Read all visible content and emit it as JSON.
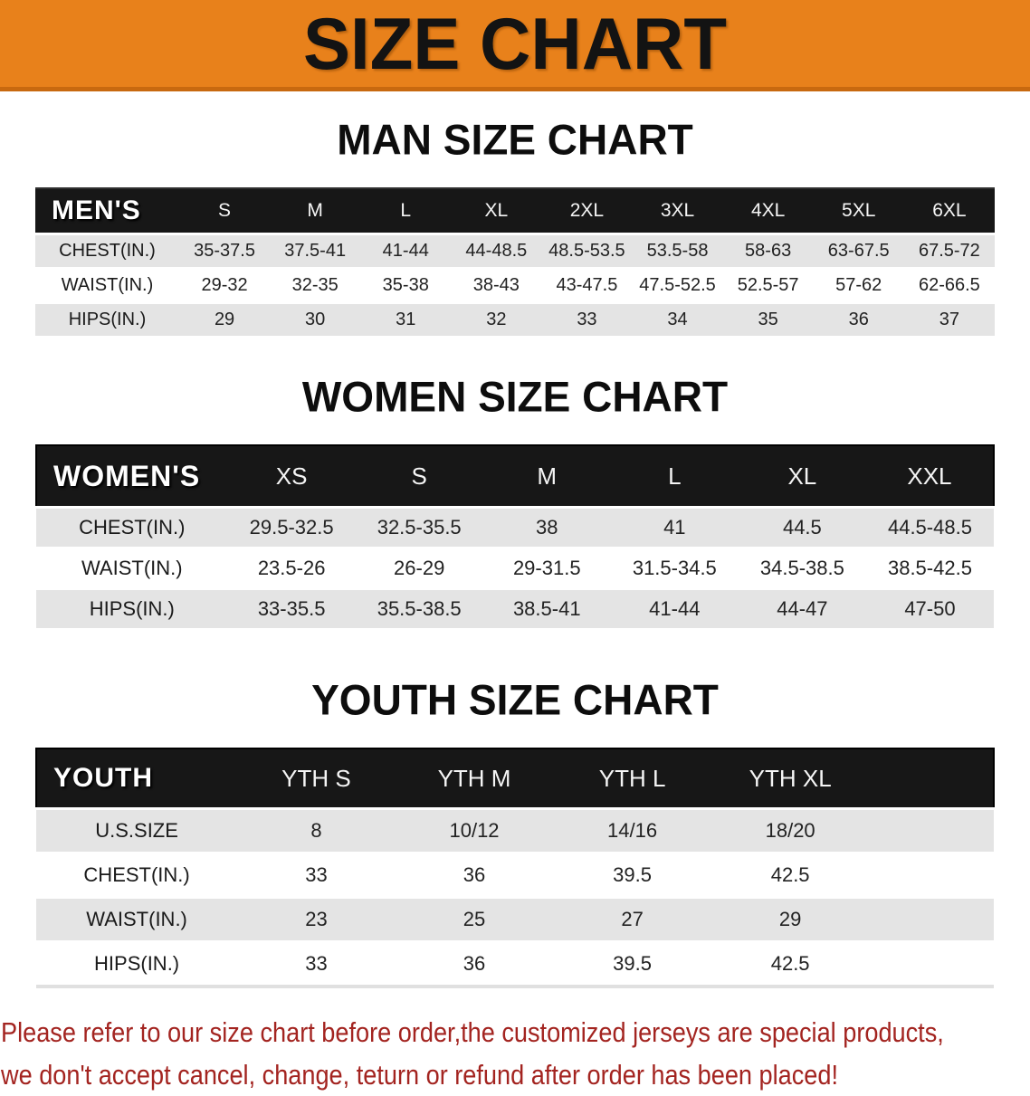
{
  "banner": {
    "title": "SIZE CHART",
    "bg_color": "#E8811B",
    "edge_color": "#C8690F"
  },
  "sections": [
    {
      "heading": "MAN SIZE CHART",
      "group_label": "MEN'S",
      "sizes": [
        "S",
        "M",
        "L",
        "XL",
        "2XL",
        "3XL",
        "4XL",
        "5XL",
        "6XL"
      ],
      "rows": [
        {
          "label": "CHEST(IN.)",
          "values": [
            "35-37.5",
            "37.5-41",
            "41-44",
            "44-48.5",
            "48.5-53.5",
            "53.5-58",
            "58-63",
            "63-67.5",
            "67.5-72"
          ]
        },
        {
          "label": "WAIST(IN.)",
          "values": [
            "29-32",
            "32-35",
            "35-38",
            "38-43",
            "43-47.5",
            "47.5-52.5",
            "52.5-57",
            "57-62",
            "62-66.5"
          ]
        },
        {
          "label": "HIPS(IN.)",
          "values": [
            "29",
            "30",
            "31",
            "32",
            "33",
            "34",
            "35",
            "36",
            "37"
          ]
        }
      ]
    },
    {
      "heading": "WOMEN SIZE CHART",
      "group_label": "WOMEN'S",
      "sizes": [
        "XS",
        "S",
        "M",
        "L",
        "XL",
        "XXL"
      ],
      "rows": [
        {
          "label": "CHEST(IN.)",
          "values": [
            "29.5-32.5",
            "32.5-35.5",
            "38",
            "41",
            "44.5",
            "44.5-48.5"
          ]
        },
        {
          "label": "WAIST(IN.)",
          "values": [
            "23.5-26",
            "26-29",
            "29-31.5",
            "31.5-34.5",
            "34.5-38.5",
            "38.5-42.5"
          ]
        },
        {
          "label": "HIPS(IN.)",
          "values": [
            "33-35.5",
            "35.5-38.5",
            "38.5-41",
            "41-44",
            "44-47",
            "47-50"
          ]
        }
      ]
    },
    {
      "heading": "YOUTH SIZE CHART",
      "group_label": "YOUTH",
      "sizes": [
        "YTH S",
        "YTH M",
        "YTH L",
        "YTH XL"
      ],
      "rows": [
        {
          "label": "U.S.SIZE",
          "values": [
            "8",
            "10/12",
            "14/16",
            "18/20"
          ]
        },
        {
          "label": "CHEST(IN.)",
          "values": [
            "33",
            "36",
            "39.5",
            "42.5"
          ]
        },
        {
          "label": "WAIST(IN.)",
          "values": [
            "23",
            "25",
            "27",
            "29"
          ]
        },
        {
          "label": "HIPS(IN.)",
          "values": [
            "33",
            "36",
            "39.5",
            "42.5"
          ]
        }
      ]
    }
  ],
  "disclaimer": {
    "line1": "Please refer to our size chart before order,the customized jerseys are special products,",
    "line2": "we don't accept cancel, change, teturn or refund after order has been placed!",
    "color": "#A32420"
  },
  "header_colors": {
    "row_dark": "#171717",
    "row_gray": "#e4e4e4",
    "header_text": "#ffffff"
  }
}
